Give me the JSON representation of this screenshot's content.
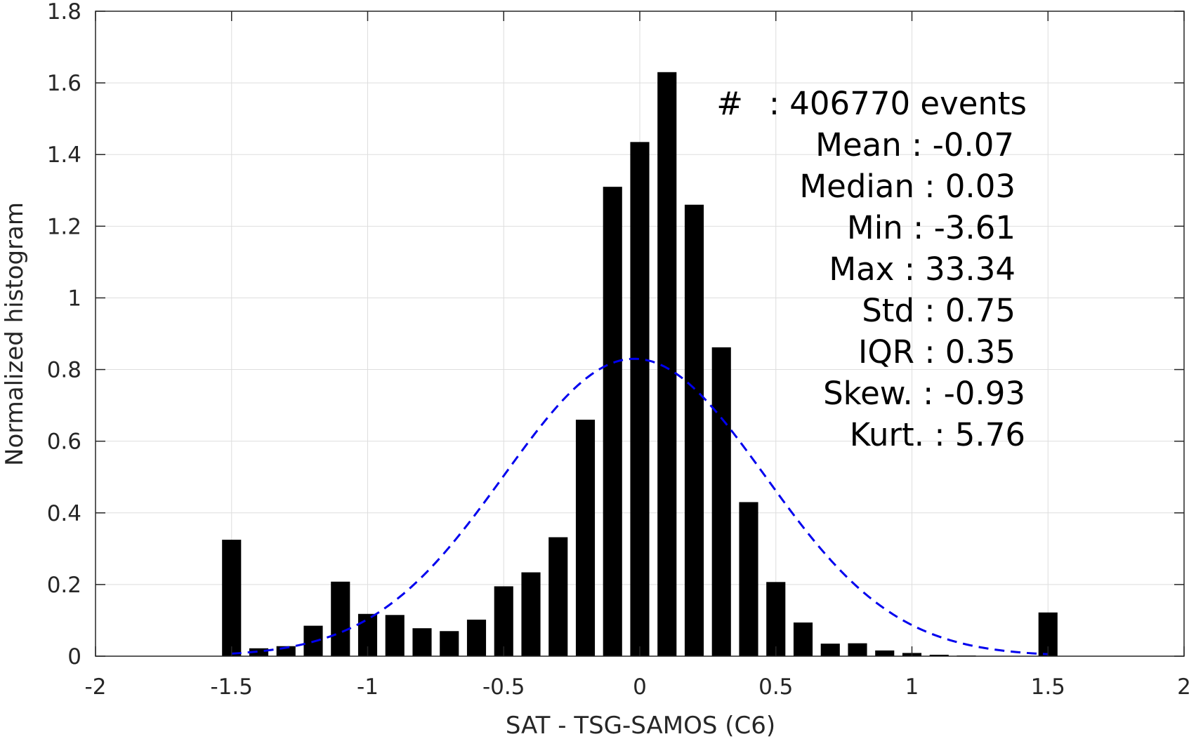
{
  "chart_data": {
    "type": "bar",
    "title": "",
    "xlabel": "SAT - TSG-SAMOS (C6)",
    "ylabel": "Normalized histogram",
    "xlim": [
      -2,
      2
    ],
    "ylim": [
      0,
      1.8
    ],
    "grid": true,
    "x_ticks": [
      "-2",
      "-1.5",
      "-1",
      "-0.5",
      "0",
      "0.5",
      "1",
      "1.5",
      "2"
    ],
    "y_ticks": [
      "0",
      "0.2",
      "0.4",
      "0.6",
      "0.8",
      "1",
      "1.2",
      "1.4",
      "1.6",
      "1.8"
    ],
    "bar_width": 0.07,
    "bars": {
      "x": [
        -1.5,
        -1.4,
        -1.3,
        -1.2,
        -1.1,
        -1.0,
        -0.9,
        -0.8,
        -0.7,
        -0.6,
        -0.5,
        -0.4,
        -0.3,
        -0.2,
        -0.1,
        0.0,
        0.1,
        0.2,
        0.3,
        0.4,
        0.5,
        0.6,
        0.7,
        0.8,
        0.9,
        1.0,
        1.1,
        1.2,
        1.3,
        1.4,
        1.5
      ],
      "values": [
        0.325,
        0.022,
        0.028,
        0.085,
        0.208,
        0.118,
        0.115,
        0.078,
        0.07,
        0.102,
        0.195,
        0.234,
        0.332,
        0.66,
        1.31,
        1.435,
        1.63,
        1.26,
        0.862,
        0.43,
        0.207,
        0.094,
        0.035,
        0.036,
        0.016,
        0.009,
        0.004,
        0.002,
        0.001,
        0.001,
        0.122
      ]
    },
    "normal_fit": {
      "style": "dashed",
      "color": "#0000ee",
      "mean": -0.02,
      "std": 0.48,
      "peak": 0.83,
      "x_range": [
        -1.5,
        1.5
      ]
    },
    "stats_box": [
      {
        "label": "#",
        "sep": ":",
        "value": "406770 events"
      },
      {
        "label": "Mean",
        "sep": ":",
        "value": "-0.07"
      },
      {
        "label": "Median",
        "sep": ":",
        "value": "0.03"
      },
      {
        "label": "Min",
        "sep": ":",
        "value": "-3.61"
      },
      {
        "label": "Max",
        "sep": ":",
        "value": "33.34"
      },
      {
        "label": "Std",
        "sep": ":",
        "value": "0.75"
      },
      {
        "label": "IQR",
        "sep": ":",
        "value": "0.35"
      },
      {
        "label": "Skew.",
        "sep": ":",
        "value": "-0.93"
      },
      {
        "label": "Kurt.",
        "sep": ":",
        "value": "5.76"
      }
    ],
    "colors": {
      "bars": "#000000",
      "grid": "#dedede",
      "axes": "#262626"
    }
  }
}
